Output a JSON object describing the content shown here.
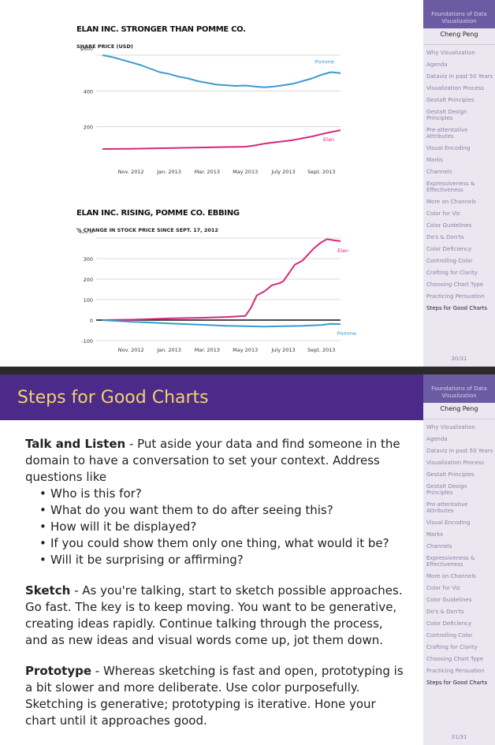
{
  "sidebar": {
    "heading": "Foundations of Data Visualization",
    "author": "Cheng Peng",
    "items": [
      "Why Visualization",
      "Agenda",
      "Dataviz in past 50 Years",
      "Visualization Process",
      "Gestalt Principles",
      "Gestalt Design Principles",
      "Pre-attentative Attributes",
      "Visual Encoding",
      "Marks",
      "Channels",
      "Expressiveness & Effectiveness",
      "More on Channels",
      "Color for Viz",
      "Color Guidelines",
      "Do's & Don'ts",
      "Color Deficiency",
      "Controlling Color",
      "Crafting for Clarity",
      "Choosing Chart Type",
      "Practicing Persuation",
      "Steps for Good Charts"
    ],
    "active_item": "Steps for Good Charts"
  },
  "slide1": {
    "page": "30/31"
  },
  "slide2": {
    "page": "31/31",
    "title": "Steps for Good Charts",
    "talk_heading": "Talk and Listen",
    "talk_text": " - Put aside your data and find someone in the domain to have a conversation to set your context. Address questions like",
    "questions": [
      "Who is this for?",
      "What do you want them to do after seeing this?",
      "How will it be displayed?",
      "If you could show them only one thing, what would it be?",
      "Will it be surprising or affirming?"
    ],
    "sketch_heading": "Sketch",
    "sketch_text": " - As you're talking, start to sketch possible approaches. Go fast. The key is to keep moving. You want to be generative, creating ideas rapidly. Continue talking through the process, and as new ideas and visual words come up, jot them down.",
    "prototype_heading": "Prototype",
    "prototype_text": " - Whereas sketching is fast and open, prototyping is a bit slower and more deliberate. Use color purposefully. Sketching is generative; prototyping is iterative. Hone your chart until it approaches good."
  },
  "colors": {
    "elan": "#d6287a",
    "pomme": "#3a9ad0",
    "title_bar": "#4b2a8a",
    "title_text": "#f3d36b",
    "sidebar_head": "#6a5ba3"
  },
  "chart_data": [
    {
      "type": "line",
      "title": "ELAN INC. STRONGER THAN POMME CO.",
      "ylabel": "SHARE PRICE (USD)",
      "ylim": [
        0,
        600
      ],
      "yticks": [
        "$600",
        "400",
        "200"
      ],
      "ytick_values": [
        600,
        400,
        200
      ],
      "xticks": [
        "Nov. 2012",
        "Jan. 2013",
        "Mar. 2013",
        "May 2013",
        "July 2013",
        "Sept. 2013"
      ],
      "x_months": [
        0,
        2,
        4,
        6,
        8,
        10
      ],
      "x_range_months": [
        -1.5,
        11
      ],
      "series": [
        {
          "name": "Pomme",
          "points": [
            [
              -1.5,
              600
            ],
            [
              -1,
              590
            ],
            [
              -0.5,
              575
            ],
            [
              0,
              560
            ],
            [
              0.5,
              545
            ],
            [
              1,
              525
            ],
            [
              1.5,
              505
            ],
            [
              2,
              495
            ],
            [
              2.5,
              480
            ],
            [
              3,
              470
            ],
            [
              3.5,
              455
            ],
            [
              4,
              445
            ],
            [
              4.5,
              435
            ],
            [
              5,
              432
            ],
            [
              5.5,
              428
            ],
            [
              6,
              430
            ],
            [
              6.5,
              425
            ],
            [
              7,
              420
            ],
            [
              7.5,
              425
            ],
            [
              8,
              432
            ],
            [
              8.5,
              440
            ],
            [
              9,
              455
            ],
            [
              9.5,
              470
            ],
            [
              10,
              490
            ],
            [
              10.5,
              505
            ],
            [
              11,
              500
            ]
          ]
        },
        {
          "name": "Elan",
          "points": [
            [
              -1.5,
              75
            ],
            [
              0,
              76
            ],
            [
              1,
              78
            ],
            [
              2,
              80
            ],
            [
              3,
              82
            ],
            [
              4,
              84
            ],
            [
              5,
              86
            ],
            [
              6,
              88
            ],
            [
              6.5,
              95
            ],
            [
              7,
              105
            ],
            [
              7.5,
              112
            ],
            [
              8,
              118
            ],
            [
              8.5,
              125
            ],
            [
              9,
              135
            ],
            [
              9.5,
              145
            ],
            [
              10,
              158
            ],
            [
              10.5,
              170
            ],
            [
              11,
              180
            ]
          ]
        }
      ]
    },
    {
      "type": "line",
      "title": "ELAN INC. RISING, POMME CO. EBBING",
      "ylabel": "% CHANGE IN STOCK PRICE SINCE SEPT. 17, 2012",
      "ylim": [
        -100,
        400
      ],
      "yticks": [
        "400%",
        "300",
        "200",
        "100",
        "0",
        "-100"
      ],
      "ytick_values": [
        400,
        300,
        200,
        100,
        0,
        -100
      ],
      "xticks": [
        "Nov. 2012",
        "Jan. 2013",
        "Mar. 2013",
        "May 2013",
        "July 2013",
        "Sept. 2013"
      ],
      "x_months": [
        0,
        2,
        4,
        6,
        8,
        10
      ],
      "x_range_months": [
        -1.5,
        11
      ],
      "series": [
        {
          "name": "Elan",
          "points": [
            [
              -1.5,
              0
            ],
            [
              0,
              2
            ],
            [
              1,
              5
            ],
            [
              2,
              8
            ],
            [
              3,
              10
            ],
            [
              4,
              12
            ],
            [
              5,
              15
            ],
            [
              6,
              20
            ],
            [
              6.3,
              60
            ],
            [
              6.6,
              120
            ],
            [
              7,
              140
            ],
            [
              7.4,
              170
            ],
            [
              7.8,
              180
            ],
            [
              8,
              190
            ],
            [
              8.3,
              230
            ],
            [
              8.6,
              270
            ],
            [
              9,
              290
            ],
            [
              9.3,
              320
            ],
            [
              9.6,
              350
            ],
            [
              10,
              380
            ],
            [
              10.3,
              395
            ],
            [
              10.6,
              390
            ],
            [
              11,
              385
            ]
          ]
        },
        {
          "name": "Pomme",
          "points": [
            [
              -1.5,
              0
            ],
            [
              -1,
              -3
            ],
            [
              0,
              -8
            ],
            [
              1,
              -12
            ],
            [
              2,
              -16
            ],
            [
              3,
              -20
            ],
            [
              4,
              -24
            ],
            [
              5,
              -28
            ],
            [
              6,
              -30
            ],
            [
              7,
              -32
            ],
            [
              8,
              -30
            ],
            [
              9,
              -28
            ],
            [
              10,
              -24
            ],
            [
              10.5,
              -18
            ],
            [
              11,
              -20
            ]
          ]
        }
      ]
    }
  ]
}
